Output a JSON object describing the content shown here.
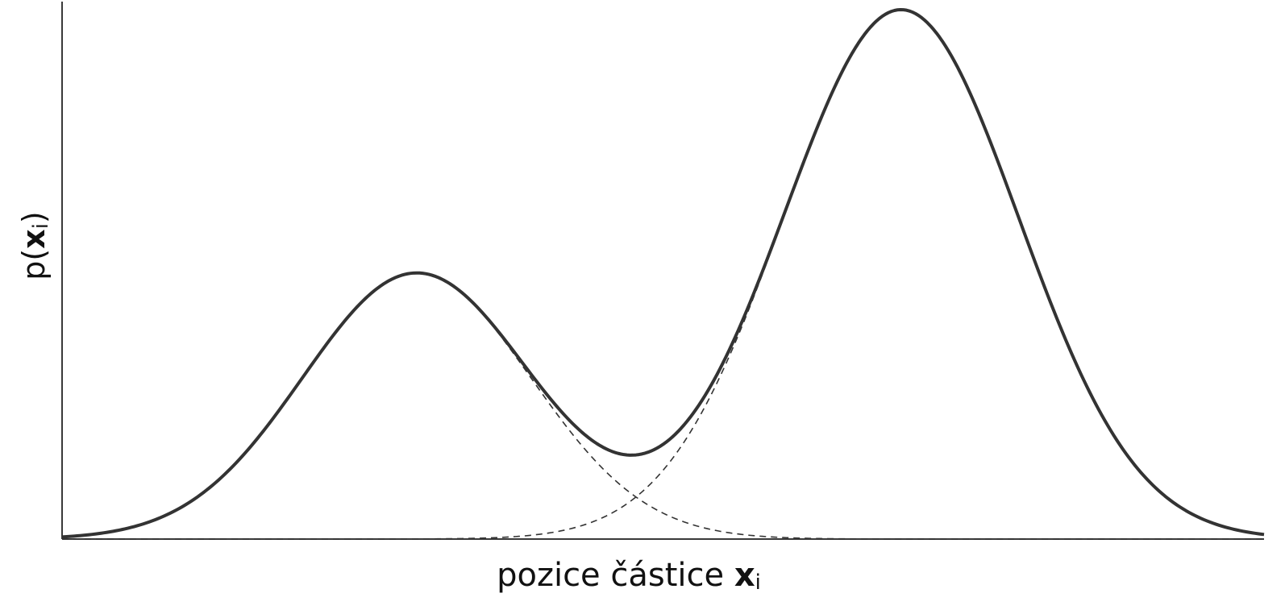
{
  "chart_data": {
    "type": "line",
    "xlabel": {
      "text": "pozice částice ",
      "var": "x",
      "sub": "i"
    },
    "ylabel": {
      "func": "p(",
      "var": "x",
      "sub": "i",
      "close": ")"
    },
    "xlim": [
      0,
      10
    ],
    "ylim": [
      0,
      1.0
    ],
    "grid": false,
    "components": [
      {
        "mean": 2.95,
        "sigma": 0.95,
        "weight": 0.495
      },
      {
        "mean": 6.98,
        "sigma": 0.98,
        "weight": 0.985
      }
    ],
    "series": [
      {
        "style": "solid",
        "role": "mixture"
      },
      {
        "style": "dashed",
        "role": "component-1"
      },
      {
        "style": "dashed",
        "role": "component-2"
      }
    ]
  }
}
